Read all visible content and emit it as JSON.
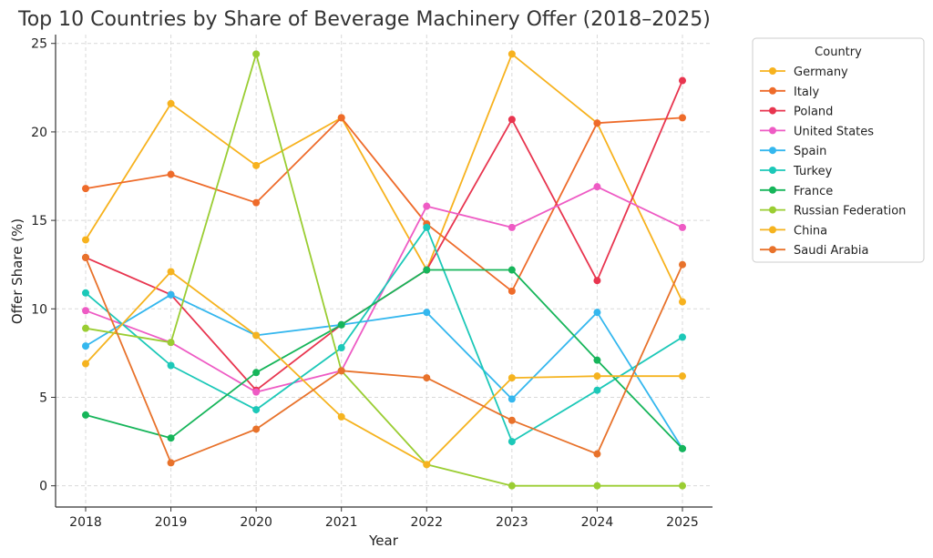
{
  "chart_data": {
    "type": "line",
    "title": "Top 10 Countries by Share of Beverage Machinery Offer (2018–2025)",
    "xlabel": "Year",
    "ylabel": "Offer Share (%)",
    "x": [
      2018,
      2019,
      2020,
      2021,
      2022,
      2023,
      2024,
      2025
    ],
    "ylim": [
      -1.2,
      25.5
    ],
    "yticks": [
      0,
      5,
      10,
      15,
      20,
      25
    ],
    "grid": true,
    "legend": {
      "title": "Country",
      "placement": "right"
    },
    "series": [
      {
        "name": "Germany",
        "color": "#F7B21E",
        "values": [
          13.9,
          21.6,
          18.1,
          20.8,
          12.2,
          24.4,
          20.5,
          10.4
        ]
      },
      {
        "name": "Italy",
        "color": "#EE6B2A",
        "values": [
          16.8,
          17.6,
          16.0,
          20.8,
          14.8,
          11.0,
          20.5,
          20.8
        ]
      },
      {
        "name": "Poland",
        "color": "#E8354F",
        "values": [
          12.9,
          10.8,
          5.4,
          9.1,
          12.2,
          20.7,
          11.6,
          22.9
        ]
      },
      {
        "name": "United States",
        "color": "#EE5BC4",
        "values": [
          9.9,
          8.1,
          5.3,
          6.5,
          15.8,
          14.6,
          16.9,
          14.6
        ]
      },
      {
        "name": "Spain",
        "color": "#34B7EE",
        "values": [
          7.9,
          10.8,
          8.5,
          9.1,
          9.8,
          4.9,
          9.8,
          2.1
        ]
      },
      {
        "name": "Turkey",
        "color": "#1CC8B8",
        "values": [
          10.9,
          6.8,
          4.3,
          7.8,
          14.6,
          2.5,
          5.4,
          8.4
        ]
      },
      {
        "name": "France",
        "color": "#16B55A",
        "values": [
          4.0,
          2.7,
          6.4,
          9.1,
          12.2,
          12.2,
          7.1,
          2.1
        ]
      },
      {
        "name": "Russian Federation",
        "color": "#9ACD32",
        "values": [
          8.9,
          8.1,
          24.4,
          6.5,
          1.2,
          0.0,
          0.0,
          0.0
        ]
      },
      {
        "name": "China",
        "color": "#F5B31F",
        "values": [
          6.9,
          12.1,
          8.5,
          3.9,
          1.2,
          6.1,
          6.2,
          6.2
        ]
      },
      {
        "name": "Saudi Arabia",
        "color": "#E8722B",
        "values": [
          12.9,
          1.3,
          3.2,
          6.5,
          6.1,
          3.7,
          1.8,
          12.5
        ]
      }
    ]
  }
}
